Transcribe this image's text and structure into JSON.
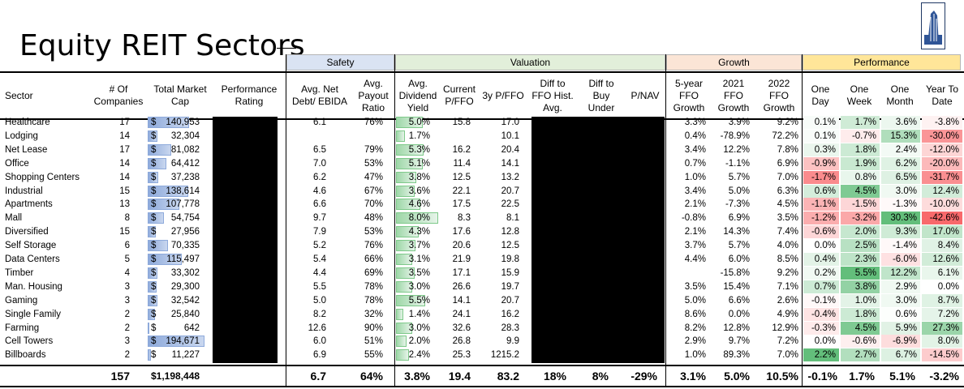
{
  "title": "Equity REIT Sectors",
  "groups": [
    {
      "label": "Safety",
      "bg": "#dae3f3"
    },
    {
      "label": "Valuation",
      "bg": "#e2efda"
    },
    {
      "label": "Growth",
      "bg": "#fbe5d6"
    },
    {
      "label": "Performance",
      "bg": "#ffe699"
    }
  ],
  "headers": {
    "sector": "Sector",
    "count": "# Of Companies",
    "cap": "Total Market Cap",
    "rating": "Performance Rating",
    "debt": "Avg. Net Debt/ EBIDA",
    "payout": "Avg. Payout Ratio",
    "yield": "Avg. Dividend Yield",
    "pffo": "Current P/FFO",
    "p3": "3y P/FFO",
    "diffhist": "Diff to FFO Hist. Avg.",
    "diffbuy": "Diff to Buy Under",
    "pnav": "P/NAV",
    "ffo5": "5-year FFO Growth",
    "g21": "2021 FFO Growth",
    "g22": "2022 FFO Growth",
    "d1": "One Day",
    "w1": "One Week",
    "m1": "One Month",
    "ytd": "Year To Date"
  },
  "rows": [
    {
      "sector": "Healthcare",
      "count": "17",
      "cap_sym": "$",
      "cap": "140,953",
      "cap_val": 140953,
      "debt": "6.1",
      "payout": "76%",
      "yield": "5.0%",
      "yield_val": 5.0,
      "pffo": "15.8",
      "p3": "17.0",
      "ffo5": "3.3%",
      "g21": "3.9%",
      "g22": "9.2%",
      "d1": "0.1%",
      "w1": "1.7%",
      "m1": "3.6%",
      "ytd": "-3.8%"
    },
    {
      "sector": "Lodging",
      "count": "14",
      "cap_sym": "$",
      "cap": "32,304",
      "cap_val": 32304,
      "debt": "",
      "payout": "",
      "yield": "1.7%",
      "yield_val": 1.7,
      "pffo": "",
      "p3": "10.1",
      "ffo5": "0.4%",
      "g21": "-78.9%",
      "g22": "72.2%",
      "d1": "0.1%",
      "w1": "-0.7%",
      "m1": "15.3%",
      "ytd": "-30.0%"
    },
    {
      "sector": "Net Lease",
      "count": "17",
      "cap_sym": "$",
      "cap": "81,082",
      "cap_val": 81082,
      "debt": "6.5",
      "payout": "79%",
      "yield": "5.3%",
      "yield_val": 5.3,
      "pffo": "16.2",
      "p3": "20.4",
      "ffo5": "3.4%",
      "g21": "12.2%",
      "g22": "7.8%",
      "d1": "0.3%",
      "w1": "1.8%",
      "m1": "2.4%",
      "ytd": "-12.0%"
    },
    {
      "sector": "Office",
      "count": "14",
      "cap_sym": "$",
      "cap": "64,412",
      "cap_val": 64412,
      "debt": "7.0",
      "payout": "53%",
      "yield": "5.1%",
      "yield_val": 5.1,
      "pffo": "11.4",
      "p3": "14.1",
      "ffo5": "0.7%",
      "g21": "-1.1%",
      "g22": "6.9%",
      "d1": "-0.9%",
      "w1": "1.9%",
      "m1": "6.2%",
      "ytd": "-20.0%"
    },
    {
      "sector": "Shopping Centers",
      "count": "14",
      "cap_sym": "$",
      "cap": "37,238",
      "cap_val": 37238,
      "debt": "6.2",
      "payout": "47%",
      "yield": "3.8%",
      "yield_val": 3.8,
      "pffo": "12.5",
      "p3": "13.2",
      "ffo5": "1.0%",
      "g21": "5.7%",
      "g22": "7.0%",
      "d1": "-1.7%",
      "w1": "0.8%",
      "m1": "6.5%",
      "ytd": "-31.7%"
    },
    {
      "sector": "Industrial",
      "count": "15",
      "cap_sym": "$",
      "cap": "138,614",
      "cap_val": 138614,
      "debt": "4.6",
      "payout": "67%",
      "yield": "3.6%",
      "yield_val": 3.6,
      "pffo": "22.1",
      "p3": "20.7",
      "ffo5": "3.4%",
      "g21": "5.0%",
      "g22": "6.3%",
      "d1": "0.6%",
      "w1": "4.5%",
      "m1": "3.0%",
      "ytd": "12.4%"
    },
    {
      "sector": "Apartments",
      "count": "13",
      "cap_sym": "$",
      "cap": "107,778",
      "cap_val": 107778,
      "debt": "6.6",
      "payout": "70%",
      "yield": "4.6%",
      "yield_val": 4.6,
      "pffo": "17.5",
      "p3": "22.5",
      "ffo5": "2.1%",
      "g21": "-7.3%",
      "g22": "4.5%",
      "d1": "-1.1%",
      "w1": "-1.5%",
      "m1": "-1.3%",
      "ytd": "-10.0%"
    },
    {
      "sector": "Mall",
      "count": "8",
      "cap_sym": "$",
      "cap": "54,754",
      "cap_val": 54754,
      "debt": "9.7",
      "payout": "48%",
      "yield": "8.0%",
      "yield_val": 8.0,
      "pffo": "8.3",
      "p3": "8.1",
      "ffo5": "-0.8%",
      "g21": "6.9%",
      "g22": "3.5%",
      "d1": "-1.2%",
      "w1": "-3.2%",
      "m1": "30.3%",
      "ytd": "-42.6%"
    },
    {
      "sector": "Diversified",
      "count": "15",
      "cap_sym": "$",
      "cap": "27,956",
      "cap_val": 27956,
      "debt": "7.9",
      "payout": "53%",
      "yield": "4.3%",
      "yield_val": 4.3,
      "pffo": "17.6",
      "p3": "12.8",
      "ffo5": "2.1%",
      "g21": "14.3%",
      "g22": "7.4%",
      "d1": "-0.6%",
      "w1": "2.0%",
      "m1": "9.3%",
      "ytd": "17.0%"
    },
    {
      "sector": "Self Storage",
      "count": "6",
      "cap_sym": "$",
      "cap": "70,335",
      "cap_val": 70335,
      "debt": "5.2",
      "payout": "76%",
      "yield": "3.7%",
      "yield_val": 3.7,
      "pffo": "20.6",
      "p3": "12.5",
      "ffo5": "3.7%",
      "g21": "5.7%",
      "g22": "4.0%",
      "d1": "0.0%",
      "w1": "2.5%",
      "m1": "-1.4%",
      "ytd": "8.4%"
    },
    {
      "sector": "Data Centers",
      "count": "5",
      "cap_sym": "$",
      "cap": "115,497",
      "cap_val": 115497,
      "debt": "5.4",
      "payout": "66%",
      "yield": "3.1%",
      "yield_val": 3.1,
      "pffo": "21.9",
      "p3": "19.8",
      "ffo5": "4.4%",
      "g21": "6.0%",
      "g22": "8.5%",
      "d1": "0.4%",
      "w1": "2.3%",
      "m1": "-6.0%",
      "ytd": "12.6%"
    },
    {
      "sector": "Timber",
      "count": "4",
      "cap_sym": "$",
      "cap": "33,302",
      "cap_val": 33302,
      "debt": "4.4",
      "payout": "69%",
      "yield": "3.5%",
      "yield_val": 3.5,
      "pffo": "17.1",
      "p3": "15.9",
      "ffo5": "",
      "g21": "-15.8%",
      "g22": "9.2%",
      "d1": "0.2%",
      "w1": "5.5%",
      "m1": "12.2%",
      "ytd": "6.1%"
    },
    {
      "sector": "Man. Housing",
      "count": "3",
      "cap_sym": "$",
      "cap": "29,300",
      "cap_val": 29300,
      "debt": "5.5",
      "payout": "78%",
      "yield": "3.0%",
      "yield_val": 3.0,
      "pffo": "26.6",
      "p3": "19.7",
      "ffo5": "3.5%",
      "g21": "15.4%",
      "g22": "7.1%",
      "d1": "0.7%",
      "w1": "3.8%",
      "m1": "2.9%",
      "ytd": "0.0%"
    },
    {
      "sector": "Gaming",
      "count": "3",
      "cap_sym": "$",
      "cap": "32,542",
      "cap_val": 32542,
      "debt": "5.0",
      "payout": "78%",
      "yield": "5.5%",
      "yield_val": 5.5,
      "pffo": "14.1",
      "p3": "20.7",
      "ffo5": "5.0%",
      "g21": "6.6%",
      "g22": "2.6%",
      "d1": "-0.1%",
      "w1": "1.0%",
      "m1": "3.0%",
      "ytd": "8.7%"
    },
    {
      "sector": "Single Family",
      "count": "2",
      "cap_sym": "$",
      "cap": "25,840",
      "cap_val": 25840,
      "debt": "8.2",
      "payout": "32%",
      "yield": "1.4%",
      "yield_val": 1.4,
      "pffo": "24.1",
      "p3": "16.2",
      "ffo5": "8.6%",
      "g21": "0.0%",
      "g22": "4.9%",
      "d1": "-0.4%",
      "w1": "1.8%",
      "m1": "0.6%",
      "ytd": "7.2%"
    },
    {
      "sector": "Farming",
      "count": "2",
      "cap_sym": "$",
      "cap": "642",
      "cap_val": 642,
      "debt": "12.6",
      "payout": "90%",
      "yield": "3.0%",
      "yield_val": 3.0,
      "pffo": "32.6",
      "p3": "28.3",
      "ffo5": "8.2%",
      "g21": "12.8%",
      "g22": "12.9%",
      "d1": "-0.3%",
      "w1": "4.5%",
      "m1": "5.9%",
      "ytd": "27.3%"
    },
    {
      "sector": "Cell Towers",
      "count": "3",
      "cap_sym": "$",
      "cap": "194,671",
      "cap_val": 194671,
      "debt": "6.0",
      "payout": "51%",
      "yield": "2.0%",
      "yield_val": 2.0,
      "pffo": "26.8",
      "p3": "9.9",
      "ffo5": "2.9%",
      "g21": "9.7%",
      "g22": "7.2%",
      "d1": "0.0%",
      "w1": "-0.6%",
      "m1": "-6.9%",
      "ytd": "8.0%"
    },
    {
      "sector": "Billboards",
      "count": "2",
      "cap_sym": "$",
      "cap": "11,227",
      "cap_val": 11227,
      "debt": "6.9",
      "payout": "55%",
      "yield": "2.4%",
      "yield_val": 2.4,
      "pffo": "25.3",
      "p3": "1215.2",
      "ffo5": "1.0%",
      "g21": "89.3%",
      "g22": "7.0%",
      "d1": "2.2%",
      "w1": "2.7%",
      "m1": "6.7%",
      "ytd": "-14.5%"
    }
  ],
  "totals": {
    "count": "157",
    "cap": "$1,198,448",
    "debt": "6.7",
    "payout": "64%",
    "yield": "3.8%",
    "pffo": "19.4",
    "p3": "83.2",
    "diffhist": "18%",
    "diffbuy": "8%",
    "pnav": "-29%",
    "ffo5": "3.1%",
    "g21": "5.0%",
    "g22": "10.5%",
    "d1": "-0.1%",
    "w1": "1.7%",
    "m1": "5.1%",
    "ytd": "-3.2%"
  },
  "colors": {
    "positive": "#63be7b",
    "negative": "#f8696b",
    "neutral": "#ffffff",
    "cap_bar": "#8eaadb",
    "yield_bar": "#9ed7a8"
  }
}
